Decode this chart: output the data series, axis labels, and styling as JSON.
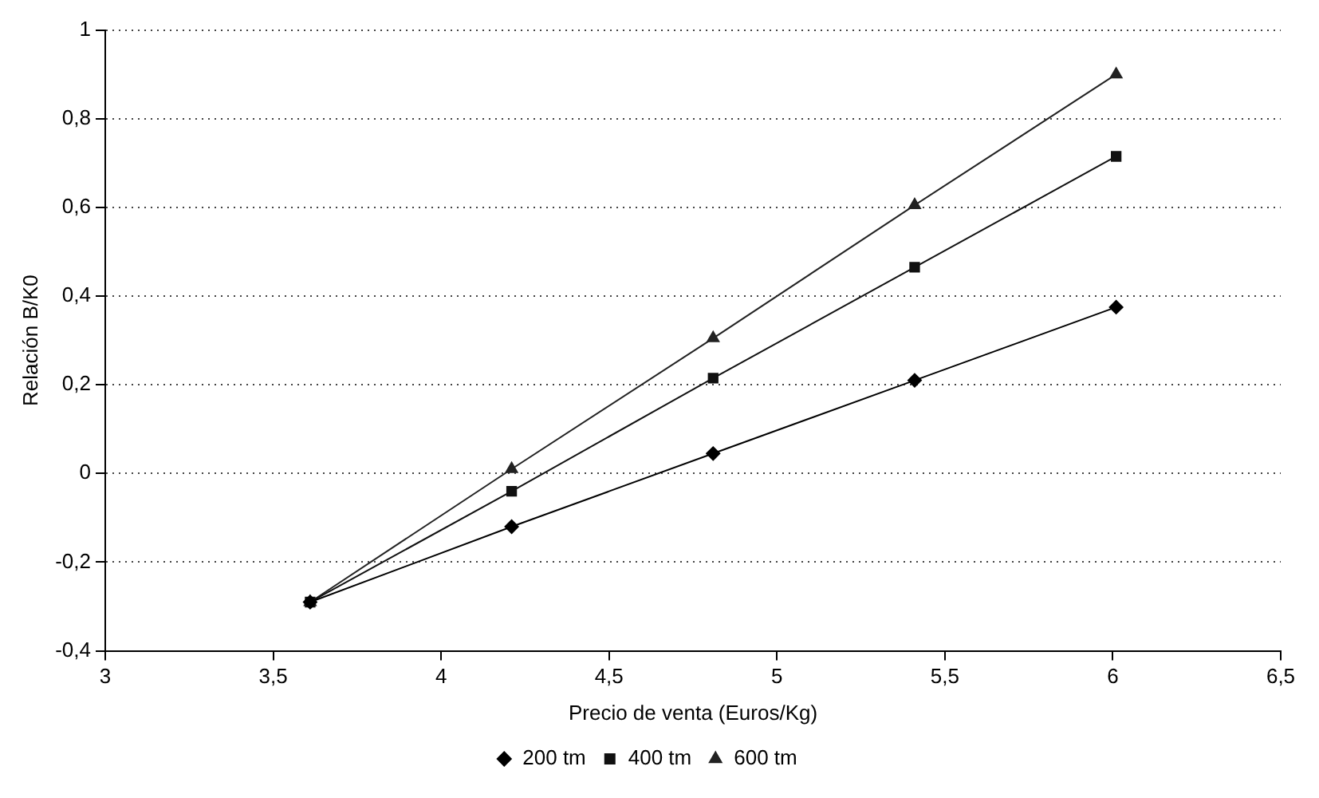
{
  "chart_data": {
    "type": "line",
    "xlabel": "Precio de venta (Euros/Kg)",
    "ylabel": "Relación B/K0",
    "x": [
      3.61,
      4.21,
      4.81,
      5.41,
      6.01
    ],
    "series": [
      {
        "name": "200 tm",
        "color": "#000000",
        "marker": "diamond",
        "values": [
          -0.29,
          -0.12,
          0.045,
          0.21,
          0.375
        ]
      },
      {
        "name": "400 tm",
        "color": "#111111",
        "marker": "square",
        "values": [
          -0.29,
          -0.04,
          0.215,
          0.465,
          0.715
        ]
      },
      {
        "name": "600 tm",
        "color": "#222222",
        "marker": "triangle",
        "values": [
          -0.29,
          0.01,
          0.305,
          0.605,
          0.9
        ]
      }
    ],
    "xlim": [
      3,
      6.5
    ],
    "xticks": [
      3,
      {
        "value": 3.5,
        "label": "3,5"
      },
      4,
      {
        "value": 4.5,
        "label": "4,5"
      },
      5,
      {
        "value": 5.5,
        "label": "5,5"
      },
      6,
      {
        "value": 6.5,
        "label": "6,5"
      }
    ],
    "ylim": [
      -0.4,
      1
    ],
    "yticks": [
      {
        "value": -0.4,
        "label": "-0,4"
      },
      {
        "value": -0.2,
        "label": "-0,2"
      },
      0,
      {
        "value": 0.2,
        "label": "0,2"
      },
      {
        "value": 0.4,
        "label": "0,4"
      },
      {
        "value": 0.6,
        "label": "0,6"
      },
      {
        "value": 0.8,
        "label": "0,8"
      },
      1
    ],
    "grid": "y",
    "legend": "bottom",
    "line_style": "solid"
  }
}
